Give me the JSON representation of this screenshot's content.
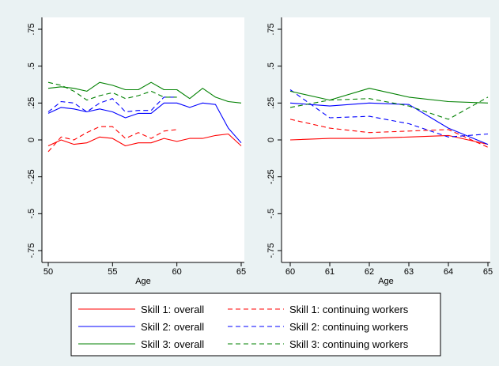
{
  "chart_data": [
    {
      "type": "line",
      "xlabel": "Age",
      "ylabel": "",
      "xlim": [
        50,
        65
      ],
      "ylim": [
        -0.75,
        0.75
      ],
      "xticks": [
        50,
        55,
        60,
        65
      ],
      "yticks": [
        -0.75,
        -0.5,
        -0.25,
        0,
        0.25,
        0.5,
        0.75
      ],
      "ytick_labels": [
        "-.75",
        "-.5",
        "-.25",
        "0",
        ".25",
        ".5",
        ".75"
      ],
      "grid": false,
      "series": [
        {
          "name": "Skill 1: overall",
          "color": "#ff0000",
          "dash": false,
          "x": [
            50,
            51,
            52,
            53,
            54,
            55,
            56,
            57,
            58,
            59,
            60,
            61,
            62,
            63,
            64,
            65
          ],
          "y": [
            -0.04,
            0.0,
            -0.03,
            -0.02,
            0.02,
            0.01,
            -0.04,
            -0.02,
            -0.02,
            0.01,
            -0.01,
            0.01,
            0.01,
            0.03,
            0.04,
            -0.04
          ]
        },
        {
          "name": "Skill 1: continuing workers",
          "color": "#ff0000",
          "dash": true,
          "x": [
            50,
            51,
            52,
            53,
            54,
            55,
            56,
            57,
            58,
            59,
            60
          ],
          "y": [
            -0.08,
            0.02,
            0.0,
            0.05,
            0.09,
            0.09,
            0.01,
            0.05,
            0.01,
            0.06,
            0.07
          ]
        },
        {
          "name": "Skill 2: overall",
          "color": "#0000ff",
          "dash": false,
          "x": [
            50,
            51,
            52,
            53,
            54,
            55,
            56,
            57,
            58,
            59,
            60,
            61,
            62,
            63,
            64,
            65
          ],
          "y": [
            0.18,
            0.22,
            0.21,
            0.19,
            0.21,
            0.19,
            0.15,
            0.18,
            0.18,
            0.25,
            0.25,
            0.22,
            0.25,
            0.24,
            0.08,
            -0.02
          ]
        },
        {
          "name": "Skill 2: continuing workers",
          "color": "#0000ff",
          "dash": true,
          "x": [
            50,
            51,
            52,
            53,
            54,
            55,
            56,
            57,
            58,
            59,
            60
          ],
          "y": [
            0.19,
            0.26,
            0.25,
            0.19,
            0.25,
            0.28,
            0.19,
            0.2,
            0.2,
            0.29,
            0.29
          ]
        },
        {
          "name": "Skill 3: overall",
          "color": "#008000",
          "dash": false,
          "x": [
            50,
            51,
            52,
            53,
            54,
            55,
            56,
            57,
            58,
            59,
            60,
            61,
            62,
            63,
            64,
            65
          ],
          "y": [
            0.35,
            0.36,
            0.35,
            0.33,
            0.39,
            0.37,
            0.34,
            0.34,
            0.39,
            0.34,
            0.34,
            0.28,
            0.35,
            0.29,
            0.26,
            0.25
          ]
        },
        {
          "name": "Skill 3: continuing workers",
          "color": "#008000",
          "dash": true,
          "x": [
            50,
            51,
            52,
            53,
            54,
            55,
            56,
            57,
            58,
            59,
            60
          ],
          "y": [
            0.39,
            0.37,
            0.33,
            0.27,
            0.3,
            0.32,
            0.28,
            0.3,
            0.33,
            0.29,
            0.29
          ]
        }
      ]
    },
    {
      "type": "line",
      "xlabel": "Age",
      "ylabel": "",
      "xlim": [
        60,
        65
      ],
      "ylim": [
        -0.75,
        0.75
      ],
      "xticks": [
        60,
        61,
        62,
        63,
        64,
        65
      ],
      "yticks": [
        -0.75,
        -0.5,
        -0.25,
        0,
        0.25,
        0.5,
        0.75
      ],
      "ytick_labels": [
        "-.75",
        "-.5",
        "-.25",
        "0",
        ".25",
        ".5",
        ".75"
      ],
      "grid": false,
      "series": [
        {
          "name": "Skill 1: overall",
          "color": "#ff0000",
          "dash": false,
          "x": [
            60,
            61,
            62,
            63,
            64,
            65
          ],
          "y": [
            0.0,
            0.01,
            0.01,
            0.02,
            0.03,
            -0.03
          ]
        },
        {
          "name": "Skill 1: continuing workers",
          "color": "#ff0000",
          "dash": true,
          "x": [
            60,
            61,
            62,
            63,
            64,
            65
          ],
          "y": [
            0.14,
            0.08,
            0.05,
            0.06,
            0.07,
            -0.05
          ]
        },
        {
          "name": "Skill 2: overall",
          "color": "#0000ff",
          "dash": false,
          "x": [
            60,
            61,
            62,
            63,
            64,
            65
          ],
          "y": [
            0.25,
            0.23,
            0.25,
            0.24,
            0.08,
            -0.03
          ]
        },
        {
          "name": "Skill 2: continuing workers",
          "color": "#0000ff",
          "dash": true,
          "x": [
            60,
            61,
            62,
            63,
            64,
            65
          ],
          "y": [
            0.34,
            0.15,
            0.16,
            0.11,
            0.02,
            0.04
          ]
        },
        {
          "name": "Skill 3: overall",
          "color": "#008000",
          "dash": false,
          "x": [
            60,
            61,
            62,
            63,
            64,
            65
          ],
          "y": [
            0.33,
            0.27,
            0.35,
            0.29,
            0.26,
            0.25
          ]
        },
        {
          "name": "Skill 3: continuing workers",
          "color": "#008000",
          "dash": true,
          "x": [
            60,
            61,
            62,
            63,
            64,
            65
          ],
          "y": [
            0.22,
            0.27,
            0.28,
            0.23,
            0.14,
            0.29
          ]
        }
      ]
    }
  ],
  "legend": {
    "placement": "bottom",
    "items": [
      {
        "label": "Skill 1: overall",
        "color": "#ff0000",
        "dash": false
      },
      {
        "label": "Skill 1: continuing workers",
        "color": "#ff0000",
        "dash": true
      },
      {
        "label": "Skill 2: overall",
        "color": "#0000ff",
        "dash": false
      },
      {
        "label": "Skill 2: continuing workers",
        "color": "#0000ff",
        "dash": true
      },
      {
        "label": "Skill 3: overall",
        "color": "#008000",
        "dash": false
      },
      {
        "label": "Skill 3: continuing workers",
        "color": "#008000",
        "dash": true
      }
    ]
  },
  "colors": {
    "background": "#eaf2f3",
    "panel": "#ffffff"
  }
}
